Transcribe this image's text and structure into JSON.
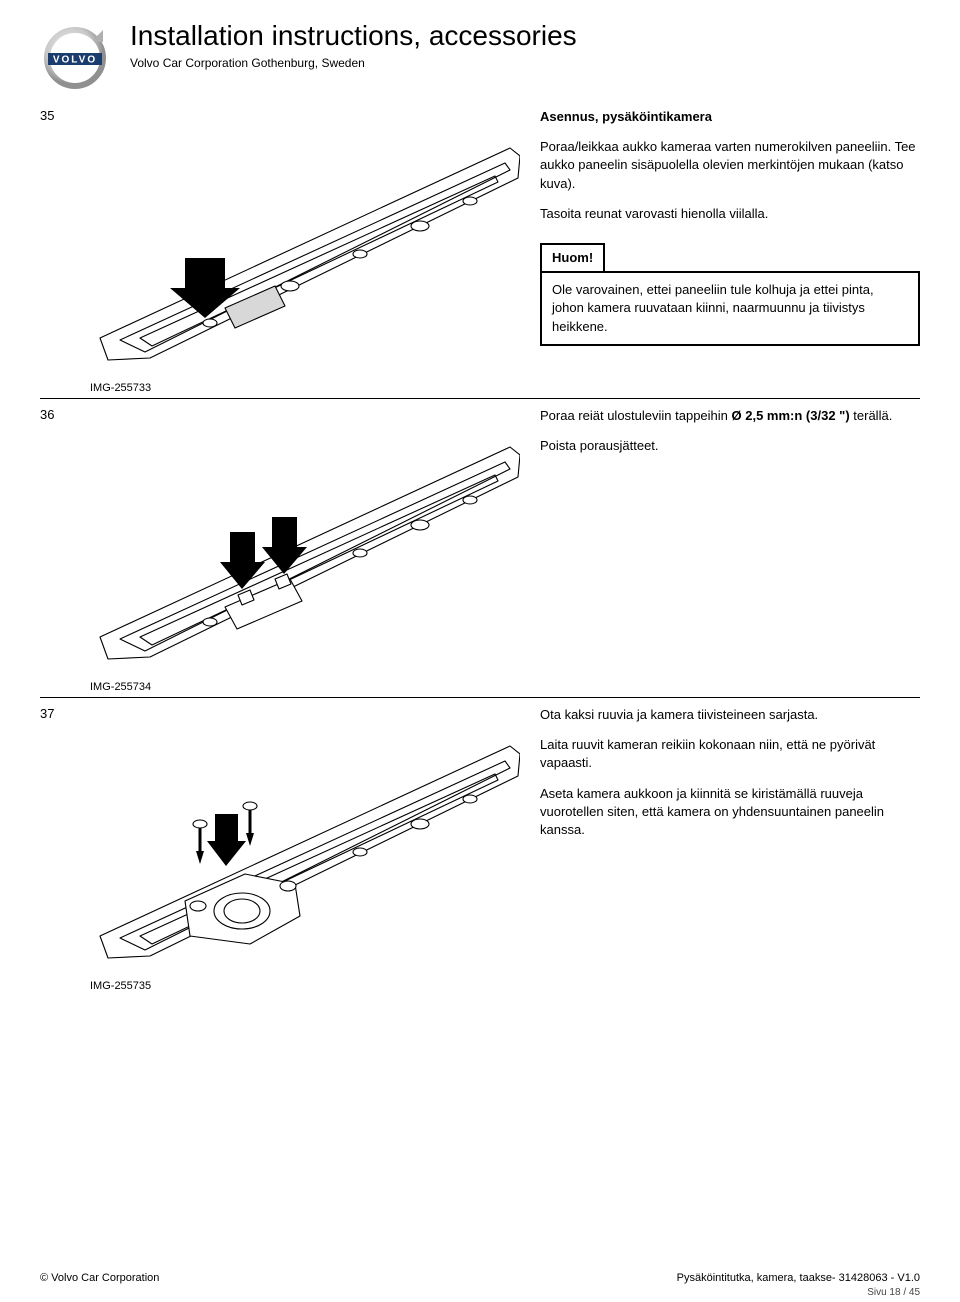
{
  "header": {
    "title": "Installation instructions, accessories",
    "subtitle": "Volvo Car Corporation Gothenburg, Sweden",
    "logo": {
      "ring_color": "#b8b8b8",
      "bar_color": "#1b3d6d",
      "text": "VOLVO",
      "text_color": "#ffffff"
    }
  },
  "steps": [
    {
      "num": "35",
      "title": "Asennus, pysäköintikamera",
      "paragraphs": [
        "Poraa/leikkaa aukko kameraa varten numerokilven paneeliin. Tee aukko paneelin sisäpuolella olevien merkintöjen mukaan (katso kuva).",
        "Tasoita reunat varovasti hienolla viilalla."
      ],
      "note": {
        "title": "Huom!",
        "body": "Ole varovainen, ettei paneeliin tule kolhuja ja ettei pinta, johon kamera ruuvataan kiinni, naarmuunnu ja tiivistys heikkene."
      },
      "img_id": "IMG-255733"
    },
    {
      "num": "36",
      "paragraphs": [
        "Poraa reiät ulostuleviin tappeihin Ø 2,5 mm:n (3/32 \") terällä.",
        "Poista porausjätteet."
      ],
      "img_id": "IMG-255734"
    },
    {
      "num": "37",
      "paragraphs": [
        "Ota kaksi ruuvia ja kamera tiivisteineen sarjasta.",
        "Laita ruuvit kameran reikiin kokonaan niin, että ne pyörivät vapaasti.",
        "Aseta kamera aukkoon ja kiinnitä se kiristämällä ruuveja vuorotellen siten, että kamera on yhdensuuntainen paneelin kanssa."
      ],
      "img_id": "IMG-255735"
    }
  ],
  "footer": {
    "left": "© Volvo Car Corporation",
    "right": "Pysäköintitutka, kamera, taakse- 31428063 - V1.0",
    "pagenum": "Sivu 18 / 45"
  },
  "diagram": {
    "stroke": "#000000",
    "fill": "#ffffff",
    "arrow_fill": "#000000",
    "grey_fill": "#d8d8d8",
    "stroke_width": 1.1
  }
}
